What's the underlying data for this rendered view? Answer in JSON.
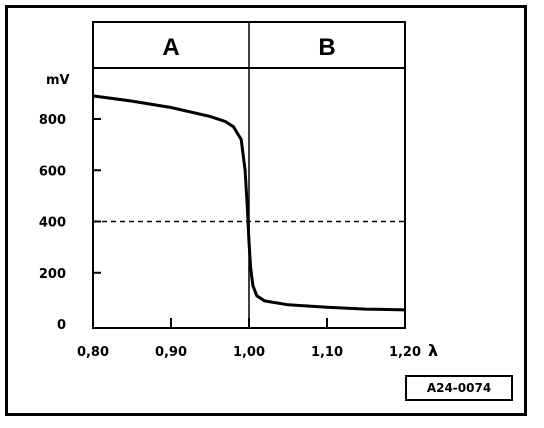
{
  "chart_data": {
    "type": "line",
    "xlabel": "λ",
    "ylabel": "mV",
    "xlim": [
      0.8,
      1.2
    ],
    "ylim": [
      0,
      1000
    ],
    "x_ticks": [
      "0,80",
      "0,90",
      "1,00",
      "1,10",
      "1,20"
    ],
    "x_tick_values": [
      0.8,
      0.9,
      1.0,
      1.1,
      1.2
    ],
    "y_ticks": [
      "0",
      "200",
      "400",
      "600",
      "800"
    ],
    "y_tick_values": [
      0,
      200,
      400,
      600,
      800
    ],
    "zones": [
      {
        "label": "A",
        "from": 0.8,
        "to": 1.0
      },
      {
        "label": "B",
        "from": 1.0,
        "to": 1.2
      }
    ],
    "reference_line": {
      "y": 400,
      "style": "dashed"
    },
    "series": [
      {
        "x": [
          0.8,
          0.85,
          0.9,
          0.95,
          0.97,
          0.98,
          0.99,
          0.995,
          0.998,
          1.0,
          1.002,
          1.005,
          1.01,
          1.02,
          1.05,
          1.1,
          1.15,
          1.2
        ],
        "y": [
          890,
          870,
          845,
          810,
          790,
          770,
          720,
          600,
          450,
          320,
          220,
          150,
          110,
          90,
          75,
          65,
          58,
          55
        ]
      }
    ],
    "grid": false
  },
  "reference_code": "A24-0074"
}
